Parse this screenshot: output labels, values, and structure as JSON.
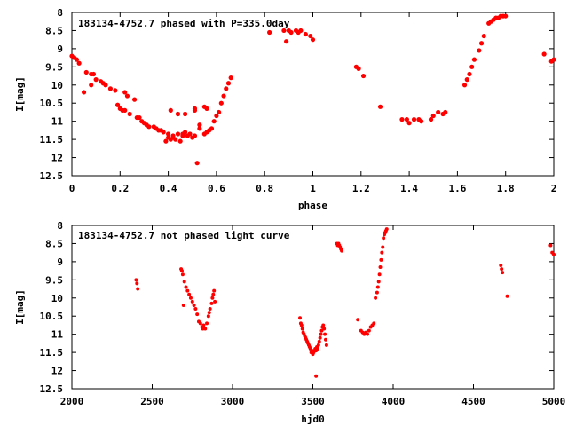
{
  "chart_data": [
    {
      "type": "scatter",
      "title": "183134-4752.7 phased with P=335.0day",
      "xlabel": "phase",
      "ylabel": "I[mag]",
      "xlim": [
        0,
        2
      ],
      "ylim": [
        8,
        12.5
      ],
      "y_inverted": true,
      "grid": false,
      "xticks": [
        "0",
        "0.2",
        "0.4",
        "0.6",
        "0.8",
        "1",
        "1.2",
        "1.4",
        "1.6",
        "1.8",
        "2"
      ],
      "xtick_values": [
        0,
        0.2,
        0.4,
        0.6,
        0.8,
        1.0,
        1.2,
        1.4,
        1.6,
        1.8,
        2.0
      ],
      "yticks": [
        "8",
        "8.5",
        "9",
        "9.5",
        "10",
        "10.5",
        "11",
        "11.5",
        "12",
        "12.5"
      ],
      "ytick_values": [
        8,
        8.5,
        9,
        9.5,
        10,
        10.5,
        11,
        11.5,
        12,
        12.5
      ],
      "color": "#ff0000",
      "x": [
        0.0,
        0.01,
        0.02,
        0.03,
        0.05,
        0.06,
        0.08,
        0.08,
        0.09,
        0.1,
        0.12,
        0.13,
        0.14,
        0.16,
        0.18,
        0.19,
        0.2,
        0.21,
        0.22,
        0.22,
        0.23,
        0.24,
        0.26,
        0.27,
        0.28,
        0.29,
        0.3,
        0.31,
        0.32,
        0.34,
        0.35,
        0.36,
        0.37,
        0.38,
        0.39,
        0.4,
        0.4,
        0.41,
        0.42,
        0.43,
        0.44,
        0.45,
        0.46,
        0.47,
        0.48,
        0.49,
        0.5,
        0.51,
        0.52,
        0.53,
        0.53,
        0.55,
        0.56,
        0.57,
        0.58,
        0.59,
        0.6,
        0.61,
        0.62,
        0.63,
        0.64,
        0.65,
        0.66,
        0.41,
        0.44,
        0.47,
        0.42,
        0.46,
        0.51,
        0.56,
        0.51,
        0.55,
        0.82,
        0.88,
        0.89,
        0.9,
        0.91,
        0.93,
        0.94,
        0.95,
        0.97,
        0.99,
        1.0,
        1.18,
        1.19,
        1.21,
        1.28,
        1.37,
        1.39,
        1.4,
        1.42,
        1.44,
        1.45,
        1.49,
        1.5,
        1.52,
        1.54,
        1.55,
        1.63,
        1.64,
        1.65,
        1.66,
        1.67,
        1.69,
        1.7,
        1.71,
        1.73,
        1.74,
        1.75,
        1.76,
        1.77,
        1.78,
        1.79,
        1.8,
        1.96,
        1.99,
        2.0
      ],
      "y": [
        9.2,
        9.25,
        9.3,
        9.4,
        10.2,
        9.65,
        10.0,
        9.7,
        9.7,
        9.85,
        9.9,
        9.95,
        10.0,
        10.1,
        10.15,
        10.55,
        10.65,
        10.7,
        10.2,
        10.7,
        10.3,
        10.8,
        10.4,
        10.9,
        10.9,
        11.0,
        11.05,
        11.1,
        11.15,
        11.15,
        11.2,
        11.25,
        11.25,
        11.3,
        11.55,
        11.35,
        11.45,
        11.5,
        11.4,
        11.5,
        11.35,
        11.55,
        11.4,
        11.3,
        11.4,
        11.35,
        11.45,
        11.4,
        12.15,
        11.2,
        11.1,
        11.35,
        11.3,
        11.25,
        11.2,
        11.0,
        10.85,
        10.75,
        10.5,
        10.3,
        10.1,
        9.95,
        9.8,
        10.7,
        10.8,
        10.8,
        11.45,
        11.35,
        10.7,
        10.65,
        10.65,
        10.6,
        8.55,
        8.5,
        8.8,
        8.5,
        8.55,
        8.5,
        8.55,
        8.5,
        8.6,
        8.65,
        8.75,
        9.5,
        9.55,
        9.75,
        10.6,
        10.95,
        10.95,
        11.05,
        10.95,
        10.95,
        11.0,
        10.95,
        10.85,
        10.75,
        10.8,
        10.75,
        10.0,
        9.85,
        9.7,
        9.5,
        9.3,
        9.05,
        8.85,
        8.65,
        8.3,
        8.25,
        8.2,
        8.15,
        8.15,
        8.1,
        8.1,
        8.1,
        9.15,
        9.35,
        9.3
      ]
    },
    {
      "type": "scatter",
      "title": "183134-4752.7 not phased light curve",
      "xlabel": "hjd0",
      "ylabel": "I[mag]",
      "xlim": [
        2000,
        5000
      ],
      "ylim": [
        8,
        12.5
      ],
      "y_inverted": true,
      "grid": false,
      "xticks": [
        "2000",
        "2500",
        "3000",
        "3500",
        "4000",
        "4500",
        "5000"
      ],
      "xtick_values": [
        2000,
        2500,
        3000,
        3500,
        4000,
        4500,
        5000
      ],
      "yticks": [
        "8",
        "8.5",
        "9",
        "9.5",
        "10",
        "10.5",
        "11",
        "11.5",
        "12",
        "12.5"
      ],
      "ytick_values": [
        8,
        8.5,
        9,
        9.5,
        10,
        10.5,
        11,
        11.5,
        12,
        12.5
      ],
      "color": "#ff0000",
      "x": [
        2400,
        2405,
        2410,
        2680,
        2685,
        2690,
        2695,
        2700,
        2710,
        2720,
        2730,
        2740,
        2750,
        2760,
        2770,
        2780,
        2790,
        2800,
        2810,
        2815,
        2820,
        2830,
        2840,
        2850,
        2855,
        2860,
        2870,
        2875,
        2880,
        2885,
        2890,
        3420,
        3425,
        3430,
        3435,
        3440,
        3445,
        3450,
        3455,
        3460,
        3465,
        3470,
        3475,
        3480,
        3485,
        3490,
        3495,
        3500,
        3505,
        3510,
        3515,
        3520,
        3525,
        3530,
        3535,
        3540,
        3545,
        3550,
        3555,
        3560,
        3565,
        3570,
        3575,
        3580,
        3585,
        3520,
        3650,
        3655,
        3660,
        3665,
        3670,
        3675,
        3680,
        3780,
        3800,
        3810,
        3820,
        3830,
        3840,
        3850,
        3860,
        3870,
        3880,
        3890,
        3900,
        3905,
        3910,
        3915,
        3920,
        3925,
        3930,
        3935,
        3940,
        3945,
        3950,
        3955,
        3960,
        4670,
        4675,
        4680,
        4710,
        4980,
        4990,
        5000
      ],
      "y": [
        9.5,
        9.6,
        9.75,
        9.2,
        9.25,
        9.35,
        10.2,
        9.55,
        9.7,
        9.8,
        9.9,
        10.0,
        10.1,
        10.2,
        10.3,
        10.45,
        10.65,
        10.7,
        10.8,
        10.85,
        10.75,
        10.85,
        10.7,
        10.5,
        10.4,
        10.3,
        10.15,
        10.0,
        9.9,
        9.8,
        10.1,
        10.55,
        10.7,
        10.75,
        10.85,
        10.95,
        11.0,
        11.05,
        11.1,
        11.15,
        11.2,
        11.25,
        11.3,
        11.35,
        11.4,
        11.5,
        11.45,
        11.55,
        11.5,
        11.45,
        11.4,
        11.45,
        11.35,
        11.4,
        11.3,
        11.2,
        11.1,
        11.0,
        10.9,
        10.8,
        10.75,
        10.85,
        11.0,
        11.15,
        11.3,
        12.15,
        8.5,
        8.55,
        8.5,
        8.55,
        8.6,
        8.65,
        8.7,
        10.6,
        10.9,
        10.95,
        11.0,
        10.95,
        11.0,
        10.9,
        10.8,
        10.75,
        10.7,
        10.0,
        9.85,
        9.7,
        9.55,
        9.35,
        9.15,
        8.95,
        8.75,
        8.6,
        8.35,
        8.25,
        8.2,
        8.15,
        8.1,
        9.1,
        9.2,
        9.3,
        9.95,
        8.55,
        8.75,
        8.8
      ]
    }
  ]
}
